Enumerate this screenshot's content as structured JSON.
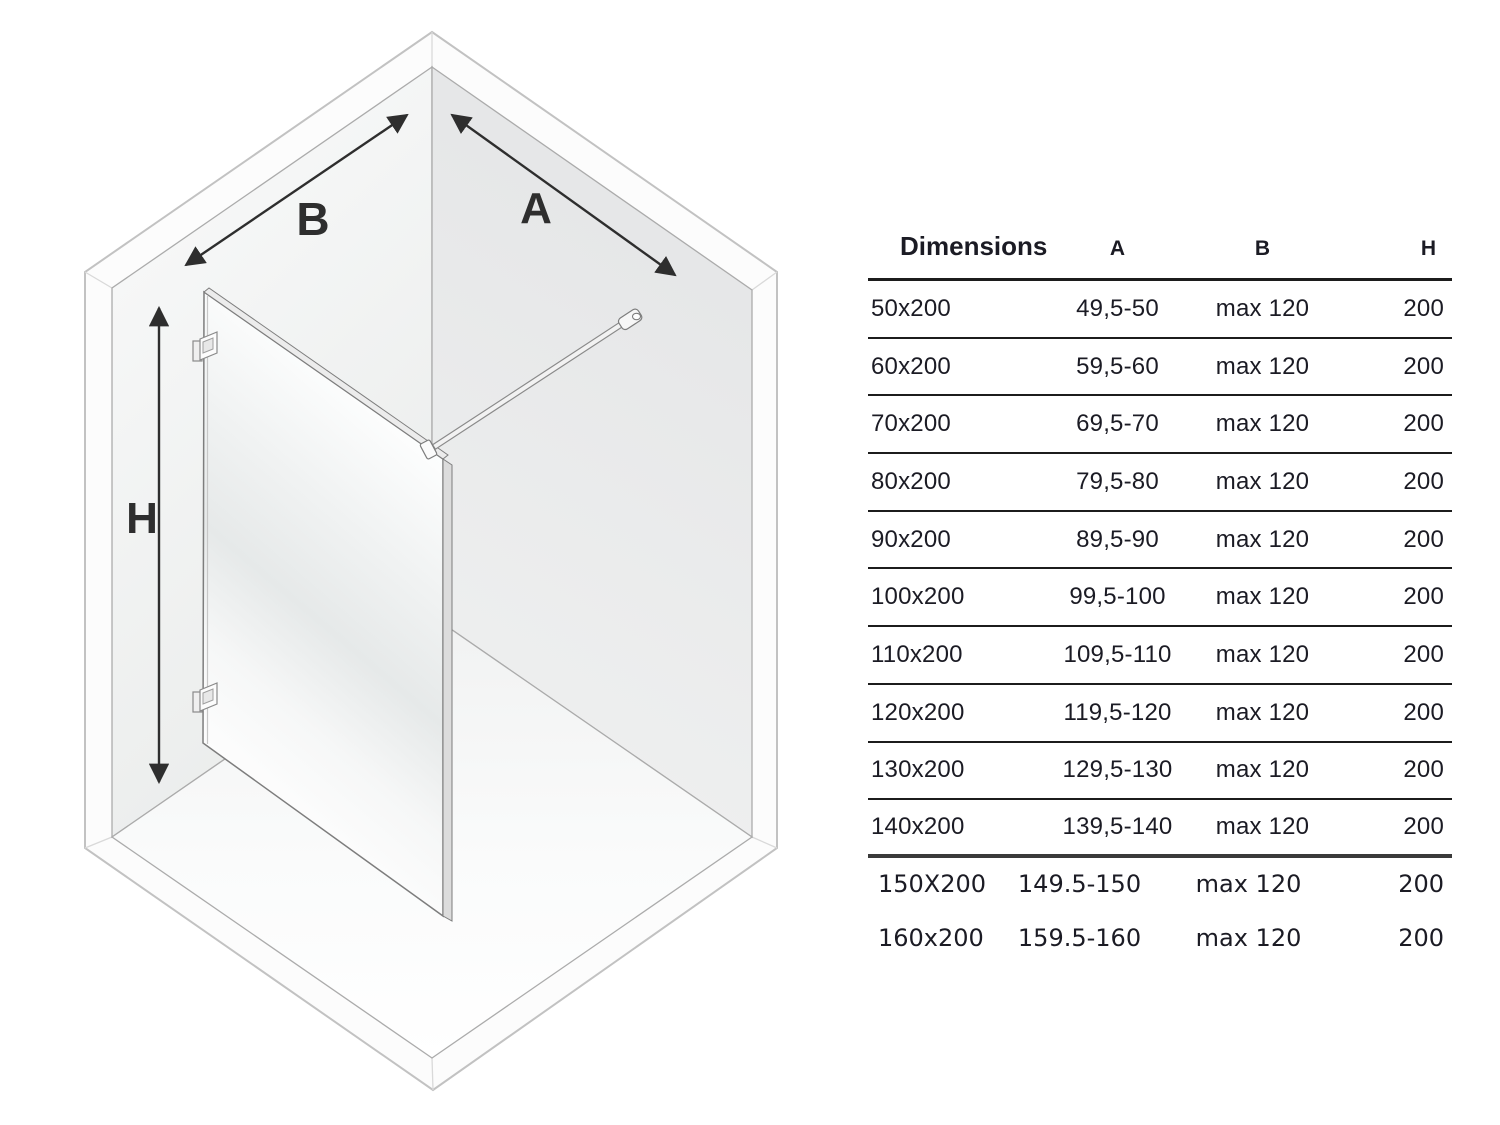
{
  "diagram": {
    "label_a": "A",
    "label_b": "B",
    "label_h": "H"
  },
  "table": {
    "header": {
      "dimensions": "Dimensions",
      "a": "A",
      "b": "B",
      "h": "H"
    },
    "rows": [
      {
        "size": "50x200",
        "a": "49,5-50",
        "b": "max 120",
        "h": "200"
      },
      {
        "size": "60x200",
        "a": "59,5-60",
        "b": "max 120",
        "h": "200"
      },
      {
        "size": "70x200",
        "a": "69,5-70",
        "b": "max 120",
        "h": "200"
      },
      {
        "size": "80x200",
        "a": "79,5-80",
        "b": "max 120",
        "h": "200"
      },
      {
        "size": "90x200",
        "a": "89,5-90",
        "b": "max 120",
        "h": "200"
      },
      {
        "size": "100x200",
        "a": "99,5-100",
        "b": "max 120",
        "h": "200"
      },
      {
        "size": "110x200",
        "a": "109,5-110",
        "b": "max 120",
        "h": "200"
      },
      {
        "size": "120x200",
        "a": "119,5-120",
        "b": "max 120",
        "h": "200"
      },
      {
        "size": "130x200",
        "a": "129,5-130",
        "b": "max 120",
        "h": "200"
      },
      {
        "size": "140x200",
        "a": "139,5-140",
        "b": "max 120",
        "h": "200"
      },
      {
        "size": "150X200",
        "a": "149.5-150",
        "b": "max 120",
        "h": "200"
      },
      {
        "size": "160x200",
        "a": "159.5-160",
        "b": "max 120",
        "h": "200"
      }
    ]
  },
  "colors": {
    "text": "#1b1b24",
    "rule": "#1c1c1c",
    "rule_thick": "#3a3a3a",
    "arrow": "#2e2e2e"
  }
}
